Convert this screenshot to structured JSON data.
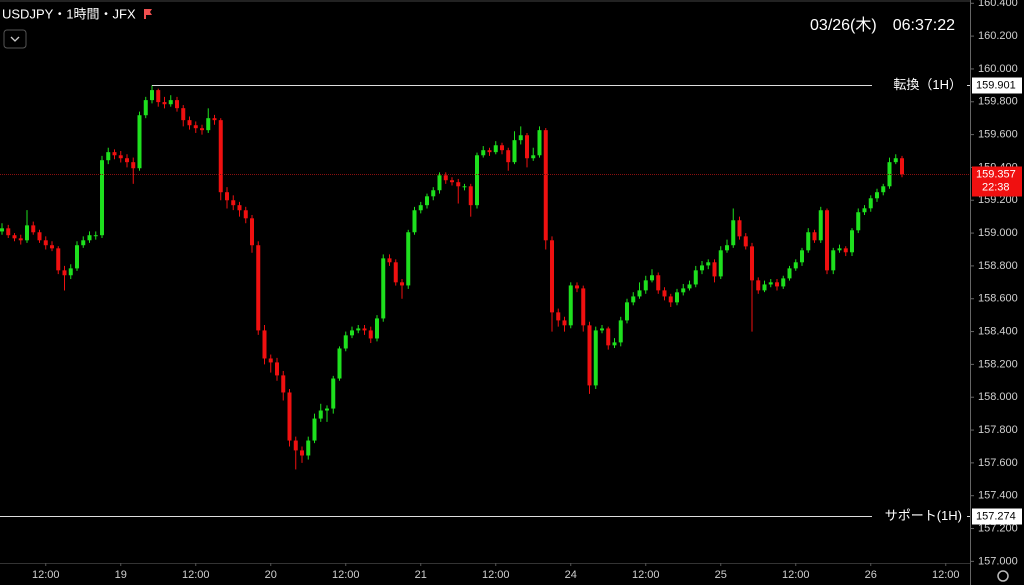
{
  "chart_data": {
    "type": "candlestick",
    "title": "USDJPY・1時間・JFX",
    "timestamp": "03/26(木)　06:37:22",
    "up_color": "#1ee01e",
    "down_color": "#f01010",
    "ylim": [
      156.99,
      160.42
    ],
    "yticks": [
      {
        "value": 157.0,
        "label": "157.000"
      },
      {
        "value": 157.2,
        "label": "157.200"
      },
      {
        "value": 157.4,
        "label": "157.400"
      },
      {
        "value": 157.6,
        "label": "157.600"
      },
      {
        "value": 157.8,
        "label": "157.800"
      },
      {
        "value": 158.0,
        "label": "158.000"
      },
      {
        "value": 158.2,
        "label": "158.200"
      },
      {
        "value": 158.4,
        "label": "158.400"
      },
      {
        "value": 158.6,
        "label": "158.600"
      },
      {
        "value": 158.8,
        "label": "158.800"
      },
      {
        "value": 159.0,
        "label": "159.000"
      },
      {
        "value": 159.2,
        "label": "159.200"
      },
      {
        "value": 159.4,
        "label": "159.400"
      },
      {
        "value": 159.6,
        "label": "159.600"
      },
      {
        "value": 159.8,
        "label": "159.800"
      },
      {
        "value": 160.0,
        "label": "160.000"
      },
      {
        "value": 160.2,
        "label": "160.200"
      },
      {
        "value": 160.4,
        "label": "160.400"
      }
    ],
    "xlim": [
      -0.32,
      154.88
    ],
    "xticks": [
      {
        "value": 7,
        "label": "12:00"
      },
      {
        "value": 19,
        "label": "19"
      },
      {
        "value": 31,
        "label": "12:00"
      },
      {
        "value": 43,
        "label": "20"
      },
      {
        "value": 55,
        "label": "12:00"
      },
      {
        "value": 67,
        "label": "21"
      },
      {
        "value": 79,
        "label": "12:00"
      },
      {
        "value": 91,
        "label": "24"
      },
      {
        "value": 103,
        "label": "12:00"
      },
      {
        "value": 115,
        "label": "25"
      },
      {
        "value": 127,
        "label": "12:00"
      },
      {
        "value": 139,
        "label": "26"
      },
      {
        "value": 151,
        "label": "12:00"
      }
    ],
    "levels": [
      {
        "name": "転換（1H）",
        "value": 159.901
      },
      {
        "name": "サポート(1H)",
        "value": 157.274
      }
    ],
    "countdown": "22:38",
    "ohlc": [
      [
        159.01,
        159.06,
        158.99,
        159.029
      ],
      [
        159.029,
        159.05,
        158.97,
        158.987
      ],
      [
        158.987,
        159.0,
        158.95,
        158.968
      ],
      [
        158.968,
        158.99,
        158.93,
        158.956
      ],
      [
        158.956,
        159.14,
        158.94,
        159.047
      ],
      [
        159.047,
        159.07,
        158.99,
        159.005
      ],
      [
        159.005,
        159.02,
        158.94,
        158.956
      ],
      [
        158.956,
        158.98,
        158.9,
        158.926
      ],
      [
        158.926,
        158.95,
        158.89,
        158.907
      ],
      [
        158.907,
        158.92,
        158.75,
        158.773
      ],
      [
        158.773,
        158.8,
        158.65,
        158.743
      ],
      [
        158.743,
        158.81,
        158.72,
        158.785
      ],
      [
        158.785,
        158.95,
        158.77,
        158.926
      ],
      [
        158.926,
        158.98,
        158.91,
        158.956
      ],
      [
        158.956,
        159.01,
        158.94,
        158.987
      ],
      [
        158.987,
        159.01,
        158.96,
        158.987
      ],
      [
        158.987,
        159.47,
        158.97,
        159.444
      ],
      [
        159.444,
        159.52,
        159.42,
        159.493
      ],
      [
        159.493,
        159.51,
        159.45,
        159.474
      ],
      [
        159.474,
        159.5,
        159.43,
        159.456
      ],
      [
        159.456,
        159.48,
        159.4,
        159.432
      ],
      [
        159.432,
        159.46,
        159.3,
        159.395
      ],
      [
        159.395,
        159.74,
        159.38,
        159.718
      ],
      [
        159.718,
        159.83,
        159.7,
        159.81
      ],
      [
        159.81,
        159.901,
        159.79,
        159.871
      ],
      [
        159.871,
        159.88,
        159.77,
        159.798
      ],
      [
        159.798,
        159.83,
        159.76,
        159.785
      ],
      [
        159.785,
        159.84,
        159.77,
        159.81
      ],
      [
        159.81,
        159.83,
        159.74,
        159.761
      ],
      [
        159.761,
        159.78,
        159.65,
        159.688
      ],
      [
        159.688,
        159.71,
        159.63,
        159.657
      ],
      [
        159.657,
        159.68,
        159.61,
        159.639
      ],
      [
        159.639,
        159.66,
        159.6,
        159.627
      ],
      [
        159.627,
        159.76,
        159.61,
        159.7
      ],
      [
        159.7,
        159.72,
        159.66,
        159.688
      ],
      [
        159.688,
        159.7,
        159.2,
        159.249
      ],
      [
        159.249,
        159.28,
        159.15,
        159.2
      ],
      [
        159.2,
        159.23,
        159.14,
        159.17
      ],
      [
        159.17,
        159.19,
        159.1,
        159.139
      ],
      [
        159.139,
        159.16,
        159.06,
        159.09
      ],
      [
        159.09,
        159.11,
        158.88,
        158.926
      ],
      [
        158.926,
        158.95,
        158.38,
        158.407
      ],
      [
        158.407,
        158.44,
        158.2,
        158.236
      ],
      [
        158.236,
        158.26,
        158.15,
        158.212
      ],
      [
        158.212,
        158.24,
        158.1,
        158.133
      ],
      [
        158.133,
        158.16,
        157.98,
        158.029
      ],
      [
        158.029,
        158.05,
        157.7,
        157.736
      ],
      [
        157.736,
        157.76,
        157.56,
        157.676
      ],
      [
        157.676,
        157.7,
        157.6,
        157.645
      ],
      [
        157.645,
        157.76,
        157.62,
        157.736
      ],
      [
        157.736,
        157.9,
        157.72,
        157.87
      ],
      [
        157.87,
        157.96,
        157.85,
        157.919
      ],
      [
        157.919,
        157.95,
        157.85,
        157.931
      ],
      [
        157.931,
        158.13,
        157.9,
        158.114
      ],
      [
        158.114,
        158.31,
        158.1,
        158.297
      ],
      [
        158.297,
        158.4,
        158.28,
        158.377
      ],
      [
        158.377,
        158.43,
        158.36,
        158.407
      ],
      [
        158.407,
        158.44,
        158.39,
        158.419
      ],
      [
        158.419,
        158.44,
        158.38,
        158.407
      ],
      [
        158.407,
        158.43,
        158.33,
        158.358
      ],
      [
        158.358,
        158.5,
        158.34,
        158.48
      ],
      [
        158.48,
        158.87,
        158.46,
        158.846
      ],
      [
        158.846,
        158.87,
        158.8,
        158.822
      ],
      [
        158.822,
        158.84,
        158.68,
        158.7
      ],
      [
        158.7,
        158.72,
        158.6,
        158.681
      ],
      [
        158.681,
        159.02,
        158.66,
        159.005
      ],
      [
        159.005,
        159.16,
        158.99,
        159.139
      ],
      [
        159.139,
        159.19,
        159.12,
        159.17
      ],
      [
        159.17,
        159.24,
        159.15,
        159.224
      ],
      [
        159.224,
        159.28,
        159.2,
        159.261
      ],
      [
        159.261,
        159.37,
        159.24,
        159.352
      ],
      [
        159.352,
        159.37,
        159.3,
        159.322
      ],
      [
        159.322,
        159.34,
        159.29,
        159.31
      ],
      [
        159.31,
        159.33,
        159.18,
        159.285
      ],
      [
        159.285,
        159.3,
        159.26,
        159.285
      ],
      [
        159.285,
        159.3,
        159.1,
        159.17
      ],
      [
        159.17,
        159.49,
        159.15,
        159.474
      ],
      [
        159.474,
        159.53,
        159.46,
        159.505
      ],
      [
        159.505,
        159.52,
        159.47,
        159.493
      ],
      [
        159.493,
        159.56,
        159.48,
        159.535
      ],
      [
        159.535,
        159.55,
        159.48,
        159.505
      ],
      [
        159.505,
        159.52,
        159.38,
        159.432
      ],
      [
        159.432,
        159.62,
        159.42,
        159.566
      ],
      [
        159.566,
        159.65,
        159.54,
        159.596
      ],
      [
        159.596,
        159.61,
        159.4,
        159.456
      ],
      [
        159.456,
        159.52,
        159.44,
        159.474
      ],
      [
        159.474,
        159.65,
        159.46,
        159.627
      ],
      [
        159.627,
        159.64,
        158.9,
        158.956
      ],
      [
        158.956,
        158.98,
        158.4,
        158.517
      ],
      [
        158.517,
        158.54,
        158.43,
        158.468
      ],
      [
        158.468,
        158.49,
        158.4,
        158.438
      ],
      [
        158.438,
        158.7,
        158.42,
        158.681
      ],
      [
        158.681,
        158.7,
        158.64,
        158.663
      ],
      [
        158.663,
        158.68,
        158.4,
        158.438
      ],
      [
        158.438,
        158.46,
        158.02,
        158.072
      ],
      [
        158.072,
        158.43,
        158.05,
        158.407
      ],
      [
        158.407,
        158.44,
        158.39,
        158.419
      ],
      [
        158.419,
        158.43,
        158.29,
        158.316
      ],
      [
        158.316,
        158.36,
        158.3,
        158.334
      ],
      [
        158.334,
        158.49,
        158.31,
        158.468
      ],
      [
        158.468,
        158.6,
        158.45,
        158.578
      ],
      [
        158.578,
        158.64,
        158.56,
        158.614
      ],
      [
        158.614,
        158.7,
        158.6,
        158.651
      ],
      [
        158.651,
        158.74,
        158.63,
        158.712
      ],
      [
        158.712,
        158.78,
        158.7,
        158.743
      ],
      [
        158.743,
        158.76,
        158.63,
        158.651
      ],
      [
        158.651,
        158.67,
        158.59,
        158.614
      ],
      [
        158.614,
        158.63,
        158.55,
        158.578
      ],
      [
        158.578,
        158.66,
        158.56,
        158.639
      ],
      [
        158.639,
        158.69,
        158.62,
        158.663
      ],
      [
        158.663,
        158.71,
        158.65,
        158.687
      ],
      [
        158.687,
        158.8,
        158.67,
        158.773
      ],
      [
        158.773,
        158.83,
        158.75,
        158.803
      ],
      [
        158.803,
        158.84,
        158.78,
        158.822
      ],
      [
        158.822,
        158.84,
        158.7,
        158.736
      ],
      [
        158.736,
        158.92,
        158.72,
        158.895
      ],
      [
        158.895,
        158.96,
        158.88,
        158.926
      ],
      [
        158.926,
        159.15,
        158.91,
        159.078
      ],
      [
        159.078,
        159.1,
        158.96,
        158.98
      ],
      [
        158.98,
        159.0,
        158.9,
        158.919
      ],
      [
        158.919,
        158.94,
        158.4,
        158.712
      ],
      [
        158.712,
        158.73,
        158.63,
        158.651
      ],
      [
        158.651,
        158.71,
        158.64,
        158.687
      ],
      [
        158.687,
        158.72,
        158.67,
        158.7
      ],
      [
        158.7,
        158.72,
        158.65,
        158.675
      ],
      [
        158.675,
        158.74,
        158.66,
        158.724
      ],
      [
        158.724,
        158.8,
        158.71,
        158.785
      ],
      [
        158.785,
        158.84,
        158.77,
        158.822
      ],
      [
        158.822,
        158.91,
        158.8,
        158.895
      ],
      [
        158.895,
        159.03,
        158.88,
        159.005
      ],
      [
        159.005,
        159.02,
        158.94,
        158.956
      ],
      [
        158.956,
        159.16,
        158.94,
        159.139
      ],
      [
        159.139,
        159.15,
        158.75,
        158.773
      ],
      [
        158.773,
        158.91,
        158.75,
        158.895
      ],
      [
        158.895,
        158.93,
        158.88,
        158.907
      ],
      [
        158.907,
        158.92,
        158.86,
        158.883
      ],
      [
        158.883,
        159.03,
        158.86,
        159.017
      ],
      [
        159.017,
        159.15,
        159.0,
        159.127
      ],
      [
        159.127,
        159.17,
        159.11,
        159.151
      ],
      [
        159.151,
        159.23,
        159.13,
        159.212
      ],
      [
        159.212,
        159.27,
        159.19,
        159.249
      ],
      [
        159.249,
        159.3,
        159.23,
        159.285
      ],
      [
        159.285,
        159.46,
        159.27,
        159.432
      ],
      [
        159.432,
        159.48,
        159.42,
        159.456
      ],
      [
        159.456,
        159.47,
        159.34,
        159.357
      ]
    ]
  }
}
